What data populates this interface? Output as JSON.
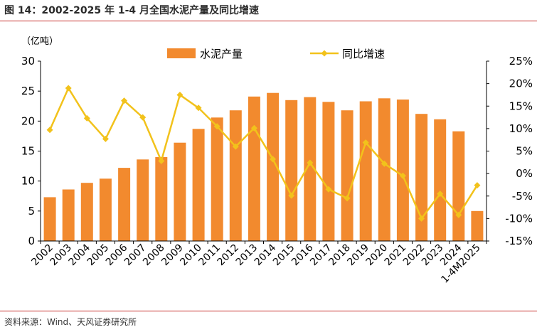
{
  "header": {
    "title": "图 14：2002-2025 年 1-4 月全国水泥产量及同比增速"
  },
  "footer": {
    "source": "资料来源：Wind、天风证券研究所"
  },
  "chart_data": {
    "type": "bar",
    "title": "图 14：2002-2025 年 1-4 月全国水泥产量及同比增速",
    "unit_label": "（亿吨）",
    "categories": [
      "2002",
      "2003",
      "2004",
      "2005",
      "2006",
      "2007",
      "2008",
      "2009",
      "2010",
      "2011",
      "2012",
      "2013",
      "2014",
      "2015",
      "2016",
      "2017",
      "2018",
      "2019",
      "2020",
      "2021",
      "2022",
      "2023",
      "2024",
      "1-4M2025"
    ],
    "ylim_left": [
      0,
      30
    ],
    "yticks_left": [
      "0",
      "5",
      "10",
      "15",
      "20",
      "25",
      "30"
    ],
    "ylim_right": [
      -15,
      25
    ],
    "yticks_right": [
      "-15%",
      "-10%",
      "-5%",
      "0%",
      "5%",
      "10%",
      "15%",
      "20%",
      "25%"
    ],
    "legend_position": "top",
    "grid": false,
    "series": [
      {
        "name": "水泥产量",
        "type": "bar",
        "axis": "left",
        "color": "#f28a2e",
        "values": [
          7.3,
          8.6,
          9.7,
          10.4,
          12.2,
          13.6,
          14.0,
          16.4,
          18.7,
          20.6,
          21.8,
          24.1,
          24.7,
          23.5,
          24.0,
          23.2,
          21.8,
          23.3,
          23.8,
          23.6,
          21.2,
          20.3,
          18.3,
          5.0
        ]
      },
      {
        "name": "同比增速",
        "type": "line",
        "axis": "right",
        "color": "#f2c21b",
        "values": [
          9.7,
          19.0,
          12.3,
          7.7,
          16.2,
          12.5,
          2.8,
          17.5,
          14.6,
          10.5,
          6.0,
          10.1,
          3.2,
          -4.9,
          2.4,
          -3.5,
          -5.5,
          6.9,
          2.2,
          -0.5,
          -10.0,
          -4.5,
          -9.2,
          -2.6
        ]
      }
    ]
  }
}
